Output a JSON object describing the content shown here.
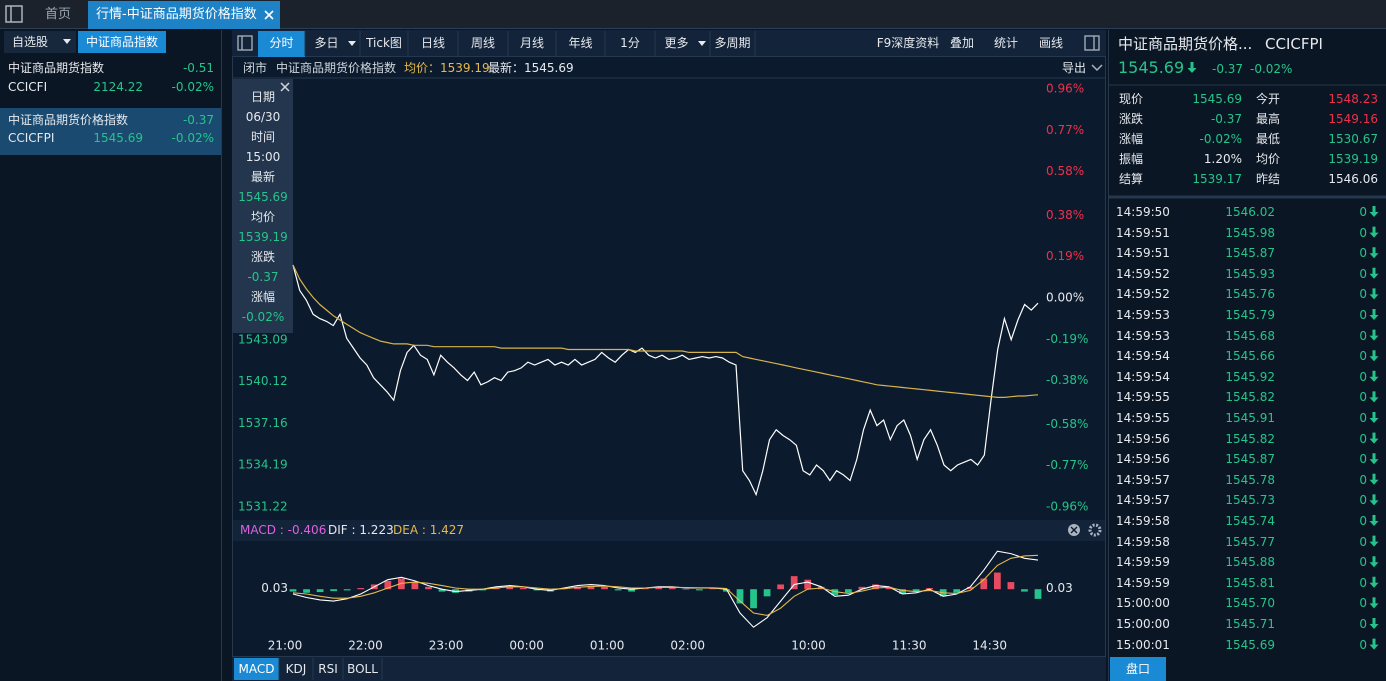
{
  "tabs": {
    "home": "首页",
    "active": "行情-中证商品期货价格指数"
  },
  "sidebar": {
    "watchlist": "自选股",
    "index_button": "中证商品指数",
    "items": [
      {
        "name": "中证商品期货指数",
        "change": "-0.51",
        "code": "CCICFI",
        "price": "2124.22",
        "pct": "-0.02%"
      },
      {
        "name": "中证商品期货价格指数",
        "change": "-0.37",
        "code": "CCICFPI",
        "price": "1545.69",
        "pct": "-0.02%"
      }
    ]
  },
  "toolbar": {
    "left": [
      "分时",
      "多日",
      "Tick图",
      "日线",
      "周线",
      "月线",
      "年线",
      "1分",
      "更多",
      "多周期"
    ],
    "right": [
      "F9深度资料",
      "叠加",
      "统计",
      "画线"
    ]
  },
  "info_bar": {
    "status": "闭市",
    "name": "中证商品期货价格指数",
    "avg": "均价：1539.19",
    "last": "最新：1545.69",
    "export": "导出"
  },
  "tooltip": [
    [
      "日期",
      "06/30"
    ],
    [
      "时间",
      "15:00"
    ],
    [
      "最新",
      "1545.69"
    ],
    [
      "均价",
      "1539.19"
    ],
    [
      "涨跌",
      "-0.37"
    ],
    [
      "涨幅",
      "-0.02%"
    ]
  ],
  "price_chart": {
    "type": "line",
    "xlim": [
      0,
      111
    ],
    "xticks": [
      {
        "value": 0,
        "label": "21:00"
      },
      {
        "value": 12,
        "label": "22:00"
      },
      {
        "value": 24,
        "label": "23:00"
      },
      {
        "value": 36,
        "label": "00:00"
      },
      {
        "value": 48,
        "label": "01:00"
      },
      {
        "value": 60,
        "label": "02:00"
      },
      {
        "value": 78,
        "label": "10:00"
      },
      {
        "value": 93,
        "label": "11:30"
      },
      {
        "value": 105,
        "label": "14:30"
      }
    ],
    "ylim": [
      1531.22,
      1560.9
    ],
    "yticks": [
      1531.22,
      1534.19,
      1537.16,
      1540.12,
      1543.09
    ],
    "y2lim": [
      -0.96,
      0.96
    ],
    "y2ticks": [
      {
        "value": -0.96,
        "label": "-0.96%"
      },
      {
        "value": -0.77,
        "label": "-0.77%"
      },
      {
        "value": -0.58,
        "label": "-0.58%"
      },
      {
        "value": -0.38,
        "label": "-0.38%"
      },
      {
        "value": -0.19,
        "label": "-0.19%"
      },
      {
        "value": 0,
        "label": "0.00%"
      },
      {
        "value": 0.19,
        "label": "0.19%"
      },
      {
        "value": 0.38,
        "label": "0.38%"
      },
      {
        "value": 0.58,
        "label": "0.58%"
      },
      {
        "value": 0.77,
        "label": "0.77%"
      },
      {
        "value": 0.96,
        "label": "0.96%"
      }
    ],
    "series": [
      {
        "color": "#ffffff",
        "values": [
          1548.4,
          1546.6,
          1545.9,
          1544.9,
          1544.6,
          1544.4,
          1544.1,
          1544.9,
          1543.2,
          1542.5,
          1541.8,
          1541.3,
          1540.4,
          1539.9,
          1539.4,
          1538.8,
          1540.9,
          1542.2,
          1542.7,
          1542.0,
          1541.7,
          1540.6,
          1542.0,
          1541.5,
          1541.1,
          1540.6,
          1540.2,
          1540.8,
          1539.9,
          1540.1,
          1540.4,
          1540.2,
          1540.8,
          1540.9,
          1541.1,
          1541.5,
          1541.3,
          1541.5,
          1541.7,
          1541.3,
          1541.5,
          1541.3,
          1541.7,
          1541.3,
          1541.5,
          1541.7,
          1542.2,
          1541.8,
          1541.5,
          1542.0,
          1542.4,
          1542.2,
          1542.5,
          1542.0,
          1541.8,
          1542.0,
          1541.7,
          1541.8,
          1542.0,
          1541.7,
          1541.8,
          1541.9,
          1541.8,
          1541.9,
          1541.8,
          1541.5,
          1541.3,
          1533.8,
          1533.1,
          1532.1,
          1533.8,
          1536.0,
          1536.7,
          1536.3,
          1536.0,
          1535.6,
          1533.8,
          1533.5,
          1534.2,
          1533.8,
          1533.1,
          1533.8,
          1533.5,
          1533.1,
          1534.6,
          1536.7,
          1538.1,
          1537.0,
          1537.4,
          1536.0,
          1537.0,
          1537.4,
          1536.3,
          1534.6,
          1536.0,
          1536.7,
          1535.6,
          1534.2,
          1533.8,
          1534.2,
          1534.4,
          1534.6,
          1534.2,
          1534.9,
          1538.8,
          1542.4,
          1544.6,
          1543.1,
          1544.5,
          1545.6,
          1545.2,
          1545.69
        ]
      },
      {
        "color": "#d9b44a",
        "values": [
          1548.4,
          1547.4,
          1546.7,
          1546.1,
          1545.6,
          1545.2,
          1544.8,
          1544.5,
          1544.2,
          1543.9,
          1543.6,
          1543.4,
          1543.2,
          1543.0,
          1542.9,
          1542.8,
          1542.8,
          1542.8,
          1542.7,
          1542.7,
          1542.7,
          1542.6,
          1542.6,
          1542.6,
          1542.6,
          1542.6,
          1542.6,
          1542.6,
          1542.6,
          1542.6,
          1542.6,
          1542.5,
          1542.5,
          1542.5,
          1542.5,
          1542.5,
          1542.5,
          1542.5,
          1542.5,
          1542.5,
          1542.5,
          1542.4,
          1542.4,
          1542.4,
          1542.4,
          1542.4,
          1542.4,
          1542.4,
          1542.4,
          1542.4,
          1542.4,
          1542.3,
          1542.3,
          1542.3,
          1542.3,
          1542.3,
          1542.3,
          1542.3,
          1542.3,
          1542.2,
          1542.2,
          1542.2,
          1542.2,
          1542.2,
          1542.2,
          1542.2,
          1542.2,
          1541.9,
          1541.8,
          1541.7,
          1541.6,
          1541.5,
          1541.4,
          1541.3,
          1541.2,
          1541.1,
          1541.0,
          1540.9,
          1540.8,
          1540.7,
          1540.6,
          1540.5,
          1540.4,
          1540.3,
          1540.2,
          1540.1,
          1540.0,
          1539.9,
          1539.85,
          1539.8,
          1539.75,
          1539.7,
          1539.65,
          1539.6,
          1539.55,
          1539.5,
          1539.45,
          1539.4,
          1539.35,
          1539.3,
          1539.25,
          1539.2,
          1539.15,
          1539.1,
          1539.05,
          1539.0,
          1539.0,
          1539.05,
          1539.1,
          1539.1,
          1539.15,
          1539.19
        ]
      }
    ]
  },
  "macd_chart": {
    "type": "macd",
    "header": [
      "MACD : -0.406",
      "DIF : 1.223",
      "DEA : 1.427"
    ],
    "xlim": [
      0,
      55
    ],
    "ylim": [
      -1.8,
      1.86
    ],
    "yticks": [
      0.03
    ],
    "up_color": "#e84a5f",
    "down_color": "#25c48a",
    "histogram": [
      -0.1,
      -0.15,
      -0.12,
      -0.08,
      -0.05,
      0.05,
      0.2,
      0.35,
      0.45,
      0.3,
      0.1,
      -0.1,
      -0.15,
      -0.1,
      -0.05,
      0.05,
      0.1,
      0.05,
      -0.05,
      -0.1,
      0.05,
      0.1,
      0.15,
      0.1,
      -0.05,
      -0.1,
      0.05,
      0.1,
      0.05,
      0.0,
      -0.05,
      0.05,
      -0.1,
      -0.6,
      -0.8,
      -0.3,
      0.2,
      0.55,
      0.4,
      0.1,
      -0.25,
      -0.15,
      0.1,
      0.2,
      0.1,
      -0.2,
      -0.1,
      0.05,
      -0.3,
      -0.15,
      0.1,
      0.45,
      0.7,
      0.3,
      -0.1,
      -0.406
    ],
    "series": [
      {
        "color": "#ffffff",
        "values": [
          -0.2,
          -0.35,
          -0.45,
          -0.5,
          -0.4,
          -0.2,
          0.1,
          0.4,
          0.5,
          0.35,
          0.15,
          0.0,
          -0.1,
          -0.05,
          0.0,
          0.1,
          0.15,
          0.1,
          0.0,
          -0.05,
          0.05,
          0.15,
          0.2,
          0.15,
          0.05,
          0.0,
          0.05,
          0.1,
          0.1,
          0.05,
          0.05,
          0.05,
          0.0,
          -1.0,
          -1.6,
          -1.2,
          -0.5,
          0.2,
          0.3,
          0.1,
          -0.3,
          -0.25,
          0.0,
          0.15,
          0.1,
          -0.2,
          -0.15,
          0.0,
          -0.3,
          -0.2,
          0.1,
          0.8,
          1.6,
          1.5,
          1.3,
          1.223
        ]
      },
      {
        "color": "#e6b94a",
        "values": [
          -0.15,
          -0.2,
          -0.3,
          -0.38,
          -0.38,
          -0.3,
          -0.15,
          0.05,
          0.25,
          0.3,
          0.25,
          0.15,
          0.05,
          0.0,
          0.0,
          0.05,
          0.1,
          0.1,
          0.05,
          0.0,
          0.02,
          0.08,
          0.12,
          0.13,
          0.1,
          0.05,
          0.05,
          0.07,
          0.08,
          0.07,
          0.06,
          0.06,
          0.03,
          -0.5,
          -1.0,
          -1.1,
          -0.8,
          -0.3,
          0.0,
          0.05,
          -0.1,
          -0.18,
          -0.08,
          0.05,
          0.08,
          -0.05,
          -0.1,
          -0.05,
          -0.15,
          -0.18,
          -0.05,
          0.4,
          1.0,
          1.3,
          1.4,
          1.427
        ]
      }
    ]
  },
  "indicator_tabs": [
    "MACD",
    "KDJ",
    "RSI",
    "BOLL"
  ],
  "quote": {
    "title": "中证商品期货价格...",
    "code": "CCICFPI",
    "price": "1545.69",
    "change": "-0.37",
    "pct": "-0.02%",
    "stats": [
      [
        "现价",
        "1545.69",
        "今开",
        "1548.23"
      ],
      [
        "涨跌",
        "-0.37",
        "最高",
        "1549.16"
      ],
      [
        "涨幅",
        "-0.02%",
        "最低",
        "1530.67"
      ],
      [
        "振幅",
        "1.20%",
        "均价",
        "1539.19"
      ],
      [
        "结算",
        "1539.17",
        "昨结",
        "1546.06"
      ]
    ]
  },
  "ticks": [
    [
      "14:59:50",
      "1546.02",
      "0"
    ],
    [
      "14:59:51",
      "1545.98",
      "0"
    ],
    [
      "14:59:51",
      "1545.87",
      "0"
    ],
    [
      "14:59:52",
      "1545.93",
      "0"
    ],
    [
      "14:59:52",
      "1545.76",
      "0"
    ],
    [
      "14:59:53",
      "1545.79",
      "0"
    ],
    [
      "14:59:53",
      "1545.68",
      "0"
    ],
    [
      "14:59:54",
      "1545.66",
      "0"
    ],
    [
      "14:59:54",
      "1545.92",
      "0"
    ],
    [
      "14:59:55",
      "1545.82",
      "0"
    ],
    [
      "14:59:55",
      "1545.91",
      "0"
    ],
    [
      "14:59:56",
      "1545.82",
      "0"
    ],
    [
      "14:59:56",
      "1545.87",
      "0"
    ],
    [
      "14:59:57",
      "1545.78",
      "0"
    ],
    [
      "14:59:57",
      "1545.73",
      "0"
    ],
    [
      "14:59:58",
      "1545.74",
      "0"
    ],
    [
      "14:59:58",
      "1545.77",
      "0"
    ],
    [
      "14:59:59",
      "1545.88",
      "0"
    ],
    [
      "14:59:59",
      "1545.81",
      "0"
    ],
    [
      "15:00:00",
      "1545.70",
      "0"
    ],
    [
      "15:00:00",
      "1545.71",
      "0"
    ],
    [
      "15:00:01",
      "1545.69",
      "0"
    ]
  ],
  "footer_button": "盘口"
}
